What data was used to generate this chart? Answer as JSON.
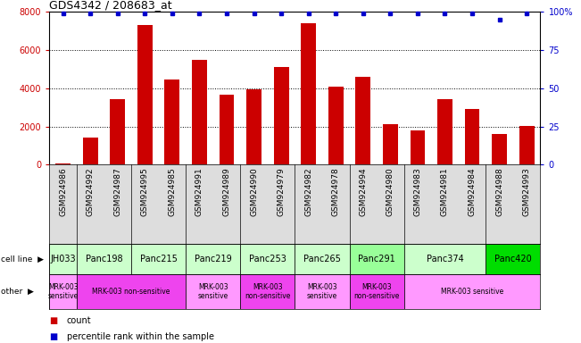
{
  "title": "GDS4342 / 208683_at",
  "samples": [
    "GSM924986",
    "GSM924992",
    "GSM924987",
    "GSM924995",
    "GSM924985",
    "GSM924991",
    "GSM924989",
    "GSM924990",
    "GSM924979",
    "GSM924982",
    "GSM924978",
    "GSM924994",
    "GSM924980",
    "GSM924983",
    "GSM924981",
    "GSM924984",
    "GSM924988",
    "GSM924993"
  ],
  "counts": [
    50,
    1400,
    3450,
    7300,
    4450,
    5500,
    3650,
    3950,
    5100,
    7400,
    4100,
    4600,
    2100,
    1800,
    3450,
    2900,
    1600,
    2050
  ],
  "percentiles": [
    99,
    99,
    99,
    99,
    99,
    99,
    99,
    99,
    99,
    99,
    99,
    99,
    99,
    99,
    99,
    99,
    95,
    99
  ],
  "cell_lines": [
    {
      "name": "JH033",
      "start": 0,
      "end": 1,
      "color": "#ccffcc"
    },
    {
      "name": "Panc198",
      "start": 1,
      "end": 3,
      "color": "#ccffcc"
    },
    {
      "name": "Panc215",
      "start": 3,
      "end": 5,
      "color": "#ccffcc"
    },
    {
      "name": "Panc219",
      "start": 5,
      "end": 7,
      "color": "#ccffcc"
    },
    {
      "name": "Panc253",
      "start": 7,
      "end": 9,
      "color": "#ccffcc"
    },
    {
      "name": "Panc265",
      "start": 9,
      "end": 11,
      "color": "#ccffcc"
    },
    {
      "name": "Panc291",
      "start": 11,
      "end": 13,
      "color": "#99ff99"
    },
    {
      "name": "Panc374",
      "start": 13,
      "end": 16,
      "color": "#ccffcc"
    },
    {
      "name": "Panc420",
      "start": 16,
      "end": 18,
      "color": "#00dd00"
    }
  ],
  "other_groups": [
    {
      "label": "MRK-003\nsensitive",
      "start": 0,
      "end": 1,
      "color": "#ff99ff"
    },
    {
      "label": "MRK-003 non-sensitive",
      "start": 1,
      "end": 5,
      "color": "#ee44ee"
    },
    {
      "label": "MRK-003\nsensitive",
      "start": 5,
      "end": 7,
      "color": "#ff99ff"
    },
    {
      "label": "MRK-003\nnon-sensitive",
      "start": 7,
      "end": 9,
      "color": "#ee44ee"
    },
    {
      "label": "MRK-003\nsensitive",
      "start": 9,
      "end": 11,
      "color": "#ff99ff"
    },
    {
      "label": "MRK-003\nnon-sensitive",
      "start": 11,
      "end": 13,
      "color": "#ee44ee"
    },
    {
      "label": "MRK-003 sensitive",
      "start": 13,
      "end": 18,
      "color": "#ff99ff"
    }
  ],
  "bar_color": "#cc0000",
  "dot_color": "#0000cc",
  "ylim_left": [
    0,
    8000
  ],
  "ylim_right": [
    0,
    100
  ],
  "yticks_left": [
    0,
    2000,
    4000,
    6000,
    8000
  ],
  "yticks_right": [
    0,
    25,
    50,
    75,
    100
  ],
  "grid_dotted_at": [
    2000,
    4000,
    6000
  ],
  "bg_color": "#ffffff",
  "tick_bg_color": "#dddddd",
  "legend_count_color": "#cc0000",
  "legend_pct_color": "#0000cc",
  "left_color": "#cc0000",
  "right_color": "#0000cc"
}
